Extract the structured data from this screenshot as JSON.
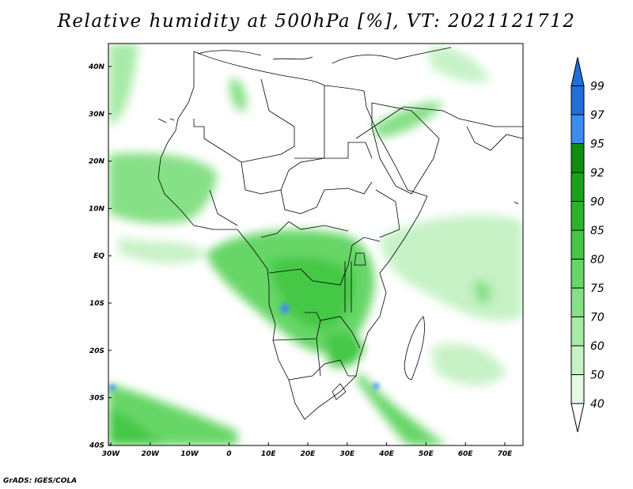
{
  "title": "Relative humidity at 500hPa [%], VT: 2021121712",
  "credit": "GrADS: IGES/COLA",
  "map": {
    "lat_ticks": [
      "40N",
      "30N",
      "20N",
      "10N",
      "EQ",
      "10S",
      "20S",
      "30S",
      "40S"
    ],
    "lon_ticks": [
      "30W",
      "20W",
      "10W",
      "0",
      "10E",
      "20E",
      "30E",
      "40E",
      "50E",
      "60E",
      "70E"
    ]
  },
  "colorbar": {
    "labels": [
      "99",
      "97",
      "95",
      "92",
      "90",
      "85",
      "80",
      "75",
      "70",
      "60",
      "50",
      "40"
    ],
    "colors": [
      "#1f6fd8",
      "#3b8df0",
      "#0f8f0f",
      "#1aa11a",
      "#2cb32c",
      "#44c844",
      "#66d666",
      "#86e086",
      "#a8eaa8",
      "#c6f2c6",
      "#e2fae2"
    ]
  }
}
